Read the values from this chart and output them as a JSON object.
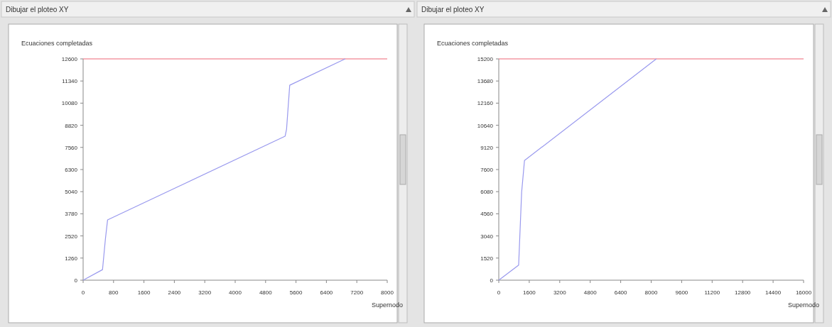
{
  "chart_data": [
    {
      "type": "line",
      "title": "Dibujar el ploteo XY",
      "ylabel": "Ecuaciones completadas",
      "xlabel": "Supernodo",
      "grid": false,
      "marker": "none",
      "line_style": "solid",
      "series": [
        {
          "color": "#9999ee",
          "x": [
            0,
            510,
            586,
            643,
            5314,
            5352,
            5435,
            6894
          ],
          "values": [
            0,
            600,
            2340,
            3430,
            8200,
            8600,
            11100,
            12600
          ]
        }
      ],
      "ref_lines": [
        {
          "axis": "y",
          "value": 12600,
          "color": "#ee6677"
        }
      ],
      "xlim": [
        0,
        8000
      ],
      "xticks": [
        0,
        800,
        1600,
        2400,
        3200,
        4000,
        4800,
        5600,
        6400,
        7200,
        8000
      ],
      "ylim": [
        0,
        12600
      ],
      "yticks": [
        0,
        1260,
        2520,
        3780,
        5040,
        6300,
        7560,
        8820,
        10080,
        11340,
        12600
      ]
    },
    {
      "type": "line",
      "title": "Dibujar el ploteo XY",
      "ylabel": "Ecuaciones completadas",
      "xlabel": "Supernodo",
      "grid": false,
      "marker": "none",
      "line_style": "solid",
      "series": [
        {
          "color": "#9999ee",
          "x": [
            0,
            1043,
            1200,
            1350,
            8270
          ],
          "values": [
            0,
            1040,
            6040,
            8220,
            15200
          ]
        }
      ],
      "ref_lines": [
        {
          "axis": "y",
          "value": 15200,
          "color": "#ee6677"
        }
      ],
      "xlim": [
        0,
        16000
      ],
      "xticks": [
        0,
        1600,
        3200,
        4800,
        6400,
        8000,
        9600,
        11200,
        12800,
        14400,
        16000
      ],
      "ylim": [
        0,
        15200
      ],
      "yticks": [
        0,
        1520,
        3040,
        4560,
        6080,
        7600,
        9120,
        10640,
        12160,
        13680,
        15200
      ]
    }
  ]
}
